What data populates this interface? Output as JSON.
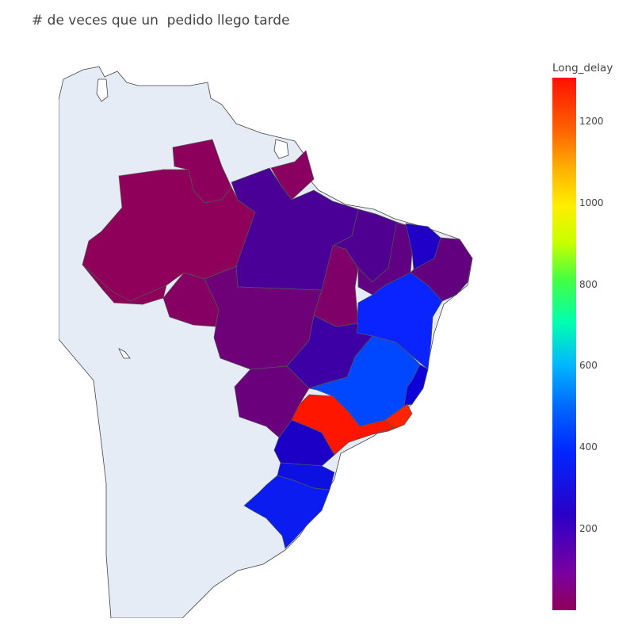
{
  "title": "# de veces que un  pedido llego tarde",
  "colorbar": {
    "title": "Long_delay",
    "ticks": [
      "200",
      "400",
      "600",
      "800",
      "1000",
      "1200"
    ],
    "colors": [
      "#8f0058",
      "#2a00c8",
      "#0028ff",
      "#00b6ff",
      "#44ff44",
      "#ffee00",
      "#ff6400",
      "#ff1000"
    ]
  },
  "map": {
    "land_color": "#e5ecf6",
    "region_colors": {
      "amazonas": "#8f005a",
      "roraima": "#8c005c",
      "amapa": "#890060",
      "para": "#4a0096",
      "acre": "#8f005a",
      "rondonia": "#860064",
      "mato_grosso": "#6e0078",
      "tocantins": "#80006a",
      "maranhao": "#500090",
      "piaui": "#600082",
      "ceara": "#2000c6",
      "rn_pb_pe_al_se": "#62007f",
      "bahia": "#0a24ff",
      "goias": "#3c00a4",
      "minas_gerais": "#0048ff",
      "espirito_santo": "#1000d8",
      "mato_grosso_do_sul": "#6a007c",
      "sao_paulo": "#ff1600",
      "rio_de_janeiro": "#ff2400",
      "parana": "#1c00c6",
      "santa_catarina": "#0c10e0",
      "rio_grande_do_sul": "#0a1cf0"
    }
  }
}
